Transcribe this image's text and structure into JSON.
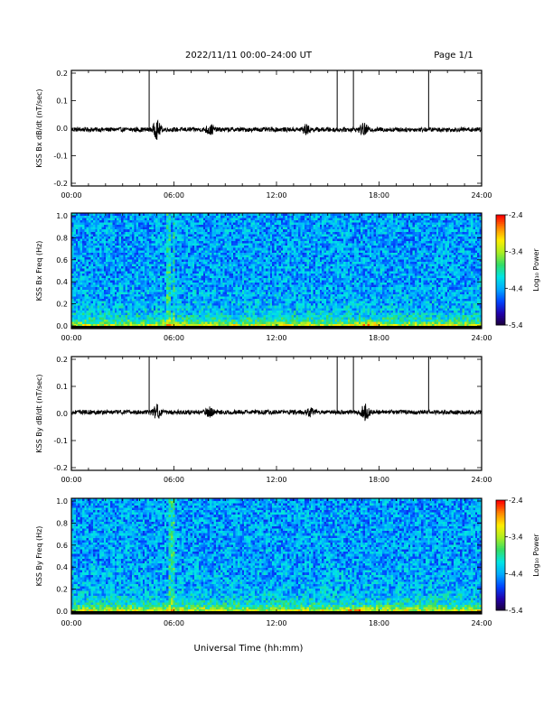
{
  "header": {
    "title": "2022/11/11  00:00–24:00 UT",
    "page": "Page 1/1"
  },
  "x_axis": {
    "label": "Universal Time (hh:mm)",
    "ticks": [
      "00:00",
      "06:00",
      "12:00",
      "18:00",
      "24:00"
    ],
    "range_hours": [
      0,
      24
    ]
  },
  "colorscale": {
    "name": "rainbow",
    "stops": [
      "#1a0033",
      "#2200aa",
      "#0044ff",
      "#00aaff",
      "#00e5e5",
      "#33dd66",
      "#aaee22",
      "#ffee00",
      "#ff8800",
      "#ff0000"
    ]
  },
  "chart_data": [
    {
      "type": "line",
      "ylabel": "KSS Bx dB/dt (nT/sec)",
      "ylim": [
        -0.2,
        0.2
      ],
      "yticks": [
        "0.2",
        "0.1",
        "0.0",
        "-0.1",
        "-0.2"
      ],
      "baseline": -0.005,
      "noise_amplitude": 0.008,
      "spikes_hours": [
        4.55,
        15.55,
        16.5,
        20.9
      ],
      "bursts": [
        {
          "hour": 5.0,
          "amplitude": 0.03
        },
        {
          "hour": 8.1,
          "amplitude": 0.018
        },
        {
          "hour": 13.7,
          "amplitude": 0.015
        },
        {
          "hour": 17.1,
          "amplitude": 0.02
        }
      ]
    },
    {
      "type": "heatmap",
      "ylabel": "KSS Bx Freq (Hz)",
      "ylim": [
        0,
        1.0
      ],
      "yticks": [
        "1.0",
        "0.8",
        "0.6",
        "0.4",
        "0.2",
        "0.0"
      ],
      "colorbar": {
        "label": "Log₁₀ Power",
        "min": -5.4,
        "max": -2.4,
        "ticks": [
          "-2.4",
          "-3.4",
          "-4.4",
          "-5.4"
        ]
      },
      "bright_columns_hours": [
        5.7,
        6.0
      ],
      "hot_spots_hours": [
        7.5,
        16.8,
        17.6
      ]
    },
    {
      "type": "line",
      "ylabel": "KSS By dB/dt (nT/sec)",
      "ylim": [
        -0.2,
        0.2
      ],
      "yticks": [
        "0.2",
        "0.1",
        "0.0",
        "-0.1",
        "-0.2"
      ],
      "baseline": 0.005,
      "noise_amplitude": 0.008,
      "spikes_hours": [
        4.55,
        15.55,
        16.5,
        20.9
      ],
      "bursts": [
        {
          "hour": 5.0,
          "amplitude": 0.025
        },
        {
          "hour": 8.1,
          "amplitude": 0.015
        },
        {
          "hour": 14.0,
          "amplitude": 0.015
        },
        {
          "hour": 17.2,
          "amplitude": 0.03
        }
      ]
    },
    {
      "type": "heatmap",
      "ylabel": "KSS By Freq (Hz)",
      "ylim": [
        0,
        1.0
      ],
      "yticks": [
        "1.0",
        "0.8",
        "0.6",
        "0.4",
        "0.2",
        "0.0"
      ],
      "colorbar": {
        "label": "Log₁₀ Power",
        "min": -5.4,
        "max": -2.4,
        "ticks": [
          "-2.4",
          "-3.4",
          "-4.4",
          "-5.4"
        ]
      },
      "bright_columns_hours": [
        5.8,
        6.0
      ],
      "hot_spots_hours": [
        8.3,
        16.7,
        17.4
      ]
    }
  ]
}
